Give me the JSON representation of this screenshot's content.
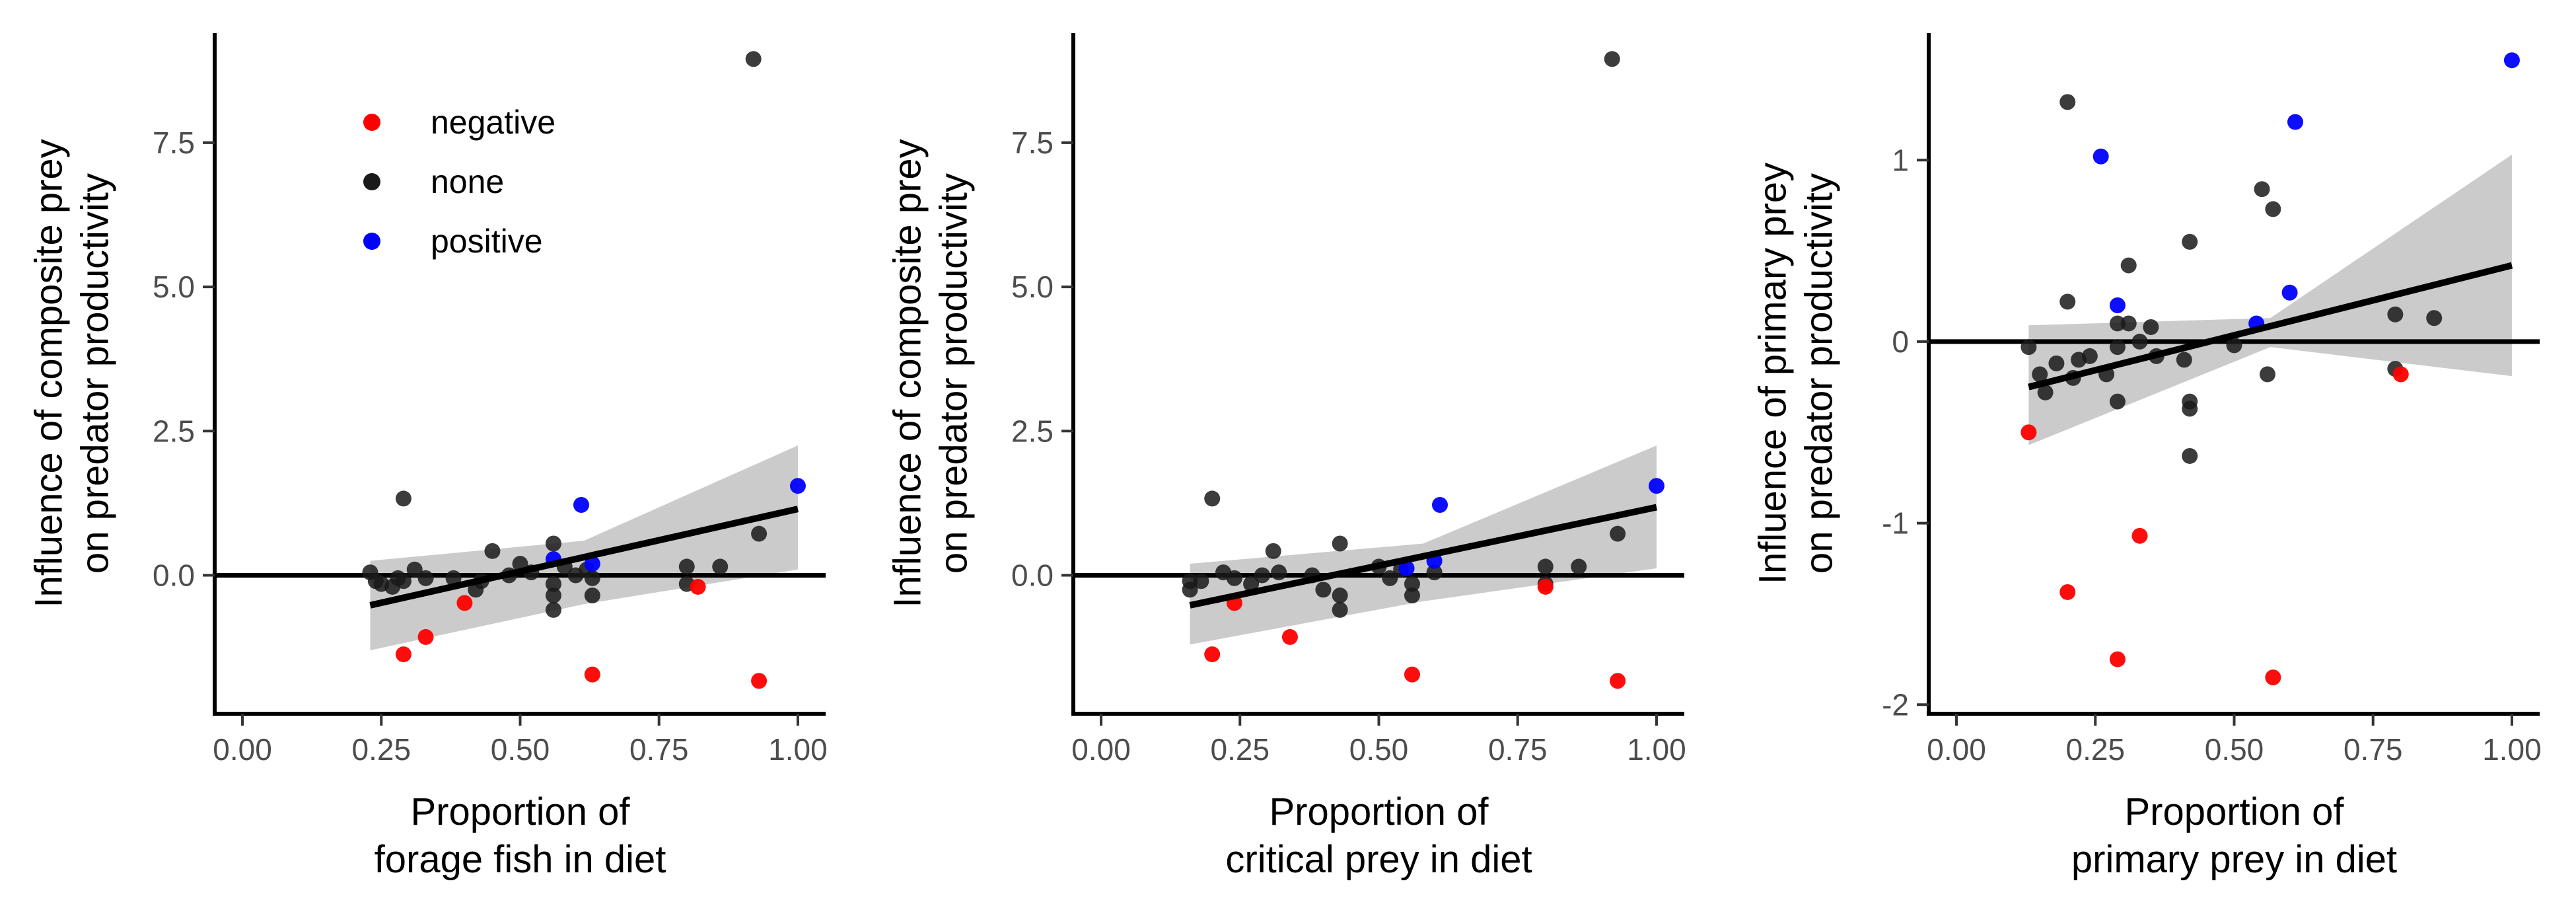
{
  "legend": {
    "entries": [
      {
        "label": "negative",
        "color": "#ff0000"
      },
      {
        "label": "none",
        "color": "#1a1a1a"
      },
      {
        "label": "positive",
        "color": "#0000ff"
      }
    ]
  },
  "colors": {
    "negative": "#ff0000",
    "none": "#1a1a1a",
    "positive": "#0000ff",
    "ribbon": "#c8c8c8",
    "fit": "#000000"
  },
  "chart_data": [
    {
      "type": "scatter",
      "xlabel": [
        "Proportion of",
        "forage fish in diet"
      ],
      "ylabel": [
        "Influence of composite prey",
        "on predator productivity"
      ],
      "xlim": [
        -0.05,
        1.05
      ],
      "ylim": [
        -2.4,
        9.4
      ],
      "xticks": [
        0,
        0.25,
        0.5,
        0.75,
        1
      ],
      "xtick_labels": [
        "0.00",
        "0.25",
        "0.50",
        "0.75",
        "1.00"
      ],
      "yticks": [
        0,
        2.5,
        5,
        7.5
      ],
      "ytick_labels": [
        "0.0",
        "2.5",
        "5.0",
        "7.5"
      ],
      "hline": 0,
      "legend_position": "top-left inside",
      "fit": {
        "x0": 0.23,
        "y0": -0.52,
        "x1": 1.0,
        "y1": 1.15,
        "band_lo": [
          -1.3,
          -0.5,
          0.1
        ],
        "band_hi": [
          0.25,
          0.6,
          2.25
        ]
      },
      "points": [
        {
          "x": 0.23,
          "y": 0.05,
          "group": "none"
        },
        {
          "x": 0.24,
          "y": -0.1,
          "group": "none"
        },
        {
          "x": 0.25,
          "y": -0.15,
          "group": "none"
        },
        {
          "x": 0.27,
          "y": -0.2,
          "group": "none"
        },
        {
          "x": 0.28,
          "y": -0.05,
          "group": "none"
        },
        {
          "x": 0.29,
          "y": -0.1,
          "group": "none"
        },
        {
          "x": 0.29,
          "y": 1.33,
          "group": "none"
        },
        {
          "x": 0.31,
          "y": 0.1,
          "group": "none"
        },
        {
          "x": 0.33,
          "y": -0.05,
          "group": "none"
        },
        {
          "x": 0.38,
          "y": -0.05,
          "group": "none"
        },
        {
          "x": 0.42,
          "y": -0.25,
          "group": "none"
        },
        {
          "x": 0.43,
          "y": -0.1,
          "group": "none"
        },
        {
          "x": 0.45,
          "y": 0.42,
          "group": "none"
        },
        {
          "x": 0.48,
          "y": 0.0,
          "group": "none"
        },
        {
          "x": 0.5,
          "y": 0.2,
          "group": "none"
        },
        {
          "x": 0.52,
          "y": 0.05,
          "group": "none"
        },
        {
          "x": 0.56,
          "y": 0.55,
          "group": "none"
        },
        {
          "x": 0.56,
          "y": -0.6,
          "group": "none"
        },
        {
          "x": 0.56,
          "y": -0.35,
          "group": "none"
        },
        {
          "x": 0.56,
          "y": -0.15,
          "group": "none"
        },
        {
          "x": 0.58,
          "y": 0.15,
          "group": "none"
        },
        {
          "x": 0.6,
          "y": 0.0,
          "group": "none"
        },
        {
          "x": 0.62,
          "y": 0.1,
          "group": "none"
        },
        {
          "x": 0.63,
          "y": -0.05,
          "group": "none"
        },
        {
          "x": 0.63,
          "y": -0.35,
          "group": "none"
        },
        {
          "x": 0.8,
          "y": 0.15,
          "group": "none"
        },
        {
          "x": 0.8,
          "y": -0.15,
          "group": "none"
        },
        {
          "x": 0.86,
          "y": 0.15,
          "group": "none"
        },
        {
          "x": 0.93,
          "y": 0.72,
          "group": "none"
        },
        {
          "x": 0.92,
          "y": 8.95,
          "group": "none"
        },
        {
          "x": 0.29,
          "y": -1.37,
          "group": "negative"
        },
        {
          "x": 0.33,
          "y": -1.07,
          "group": "negative"
        },
        {
          "x": 0.4,
          "y": -0.48,
          "group": "negative"
        },
        {
          "x": 0.63,
          "y": -1.72,
          "group": "negative"
        },
        {
          "x": 0.82,
          "y": -0.2,
          "group": "negative"
        },
        {
          "x": 0.93,
          "y": -1.83,
          "group": "negative"
        },
        {
          "x": 0.61,
          "y": 1.22,
          "group": "positive"
        },
        {
          "x": 0.56,
          "y": 0.28,
          "group": "positive"
        },
        {
          "x": 0.63,
          "y": 0.2,
          "group": "positive"
        },
        {
          "x": 1.0,
          "y": 1.55,
          "group": "positive"
        }
      ]
    },
    {
      "type": "scatter",
      "xlabel": [
        "Proportion of",
        "critical prey in diet"
      ],
      "ylabel": [
        "Influence of composite prey",
        "on predator productivity"
      ],
      "xlim": [
        -0.05,
        1.05
      ],
      "ylim": [
        -2.4,
        9.4
      ],
      "xticks": [
        0,
        0.25,
        0.5,
        0.75,
        1
      ],
      "xtick_labels": [
        "0.00",
        "0.25",
        "0.50",
        "0.75",
        "1.00"
      ],
      "yticks": [
        0,
        2.5,
        5,
        7.5
      ],
      "ytick_labels": [
        "0.0",
        "2.5",
        "5.0",
        "7.5"
      ],
      "hline": 0,
      "fit": {
        "x0": 0.16,
        "y0": -0.52,
        "x1": 1.0,
        "y1": 1.18,
        "band_lo": [
          -1.2,
          -0.45,
          0.12
        ],
        "band_hi": [
          0.2,
          0.55,
          2.25
        ]
      },
      "points": [
        {
          "x": 0.16,
          "y": -0.1,
          "group": "none"
        },
        {
          "x": 0.16,
          "y": -0.25,
          "group": "none"
        },
        {
          "x": 0.18,
          "y": -0.1,
          "group": "none"
        },
        {
          "x": 0.2,
          "y": 1.33,
          "group": "none"
        },
        {
          "x": 0.22,
          "y": 0.05,
          "group": "none"
        },
        {
          "x": 0.24,
          "y": -0.05,
          "group": "none"
        },
        {
          "x": 0.27,
          "y": -0.15,
          "group": "none"
        },
        {
          "x": 0.29,
          "y": 0.0,
          "group": "none"
        },
        {
          "x": 0.31,
          "y": 0.42,
          "group": "none"
        },
        {
          "x": 0.32,
          "y": 0.05,
          "group": "none"
        },
        {
          "x": 0.38,
          "y": 0.0,
          "group": "none"
        },
        {
          "x": 0.4,
          "y": -0.25,
          "group": "none"
        },
        {
          "x": 0.43,
          "y": 0.55,
          "group": "none"
        },
        {
          "x": 0.43,
          "y": -0.6,
          "group": "none"
        },
        {
          "x": 0.43,
          "y": -0.35,
          "group": "none"
        },
        {
          "x": 0.5,
          "y": 0.15,
          "group": "none"
        },
        {
          "x": 0.52,
          "y": -0.05,
          "group": "none"
        },
        {
          "x": 0.54,
          "y": 0.1,
          "group": "none"
        },
        {
          "x": 0.56,
          "y": -0.15,
          "group": "none"
        },
        {
          "x": 0.56,
          "y": -0.35,
          "group": "none"
        },
        {
          "x": 0.6,
          "y": 0.05,
          "group": "none"
        },
        {
          "x": 0.8,
          "y": 0.15,
          "group": "none"
        },
        {
          "x": 0.8,
          "y": -0.15,
          "group": "none"
        },
        {
          "x": 0.86,
          "y": 0.15,
          "group": "none"
        },
        {
          "x": 0.93,
          "y": 0.72,
          "group": "none"
        },
        {
          "x": 0.92,
          "y": 8.95,
          "group": "none"
        },
        {
          "x": 0.2,
          "y": -1.37,
          "group": "negative"
        },
        {
          "x": 0.24,
          "y": -0.48,
          "group": "negative"
        },
        {
          "x": 0.34,
          "y": -1.07,
          "group": "negative"
        },
        {
          "x": 0.56,
          "y": -1.72,
          "group": "negative"
        },
        {
          "x": 0.8,
          "y": -0.2,
          "group": "negative"
        },
        {
          "x": 0.93,
          "y": -1.83,
          "group": "negative"
        },
        {
          "x": 0.61,
          "y": 1.22,
          "group": "positive"
        },
        {
          "x": 0.55,
          "y": 0.12,
          "group": "positive"
        },
        {
          "x": 0.6,
          "y": 0.25,
          "group": "positive"
        },
        {
          "x": 1.0,
          "y": 1.55,
          "group": "positive"
        }
      ]
    },
    {
      "type": "scatter",
      "xlabel": [
        "Proportion of",
        "primary prey in diet"
      ],
      "ylabel": [
        "Influence of primary prey",
        "on predator productivity"
      ],
      "xlim": [
        -0.05,
        1.05
      ],
      "ylim": [
        -2.05,
        1.7
      ],
      "xticks": [
        0,
        0.25,
        0.5,
        0.75,
        1
      ],
      "xtick_labels": [
        "0.00",
        "0.25",
        "0.50",
        "0.75",
        "1.00"
      ],
      "yticks": [
        -2,
        -1,
        0,
        1
      ],
      "ytick_labels": [
        "-2",
        "-1",
        "0",
        "1"
      ],
      "hline": 0,
      "fit": {
        "x0": 0.13,
        "y0": -0.25,
        "x1": 1.0,
        "y1": 0.42,
        "band_lo": [
          -0.57,
          -0.03,
          -0.19
        ],
        "band_hi": [
          0.09,
          0.13,
          1.03
        ]
      },
      "points": [
        {
          "x": 0.13,
          "y": -0.03,
          "group": "none"
        },
        {
          "x": 0.15,
          "y": -0.18,
          "group": "none"
        },
        {
          "x": 0.16,
          "y": -0.28,
          "group": "none"
        },
        {
          "x": 0.18,
          "y": -0.12,
          "group": "none"
        },
        {
          "x": 0.2,
          "y": 1.32,
          "group": "none"
        },
        {
          "x": 0.2,
          "y": 0.22,
          "group": "none"
        },
        {
          "x": 0.21,
          "y": -0.2,
          "group": "none"
        },
        {
          "x": 0.22,
          "y": -0.1,
          "group": "none"
        },
        {
          "x": 0.24,
          "y": -0.08,
          "group": "none"
        },
        {
          "x": 0.27,
          "y": -0.18,
          "group": "none"
        },
        {
          "x": 0.29,
          "y": -0.03,
          "group": "none"
        },
        {
          "x": 0.29,
          "y": 0.1,
          "group": "none"
        },
        {
          "x": 0.29,
          "y": -0.33,
          "group": "none"
        },
        {
          "x": 0.31,
          "y": 0.42,
          "group": "none"
        },
        {
          "x": 0.31,
          "y": 0.1,
          "group": "none"
        },
        {
          "x": 0.33,
          "y": 0.0,
          "group": "none"
        },
        {
          "x": 0.35,
          "y": 0.08,
          "group": "none"
        },
        {
          "x": 0.36,
          "y": -0.08,
          "group": "none"
        },
        {
          "x": 0.41,
          "y": -0.1,
          "group": "none"
        },
        {
          "x": 0.42,
          "y": 0.55,
          "group": "none"
        },
        {
          "x": 0.42,
          "y": -0.33,
          "group": "none"
        },
        {
          "x": 0.42,
          "y": -0.37,
          "group": "none"
        },
        {
          "x": 0.42,
          "y": -0.63,
          "group": "none"
        },
        {
          "x": 0.5,
          "y": -0.02,
          "group": "none"
        },
        {
          "x": 0.55,
          "y": 0.84,
          "group": "none"
        },
        {
          "x": 0.57,
          "y": 0.73,
          "group": "none"
        },
        {
          "x": 0.56,
          "y": -0.18,
          "group": "none"
        },
        {
          "x": 0.79,
          "y": 0.15,
          "group": "none"
        },
        {
          "x": 0.79,
          "y": -0.15,
          "group": "none"
        },
        {
          "x": 0.86,
          "y": 0.13,
          "group": "none"
        },
        {
          "x": 0.13,
          "y": -0.5,
          "group": "negative"
        },
        {
          "x": 0.2,
          "y": -1.38,
          "group": "negative"
        },
        {
          "x": 0.29,
          "y": -1.75,
          "group": "negative"
        },
        {
          "x": 0.33,
          "y": -1.07,
          "group": "negative"
        },
        {
          "x": 0.57,
          "y": -1.85,
          "group": "negative"
        },
        {
          "x": 0.8,
          "y": -0.18,
          "group": "negative"
        },
        {
          "x": 0.26,
          "y": 1.02,
          "group": "positive"
        },
        {
          "x": 0.29,
          "y": 0.2,
          "group": "positive"
        },
        {
          "x": 0.54,
          "y": 0.1,
          "group": "positive"
        },
        {
          "x": 0.6,
          "y": 0.27,
          "group": "positive"
        },
        {
          "x": 0.61,
          "y": 1.21,
          "group": "positive"
        },
        {
          "x": 1.0,
          "y": 1.55,
          "group": "positive"
        }
      ]
    }
  ]
}
